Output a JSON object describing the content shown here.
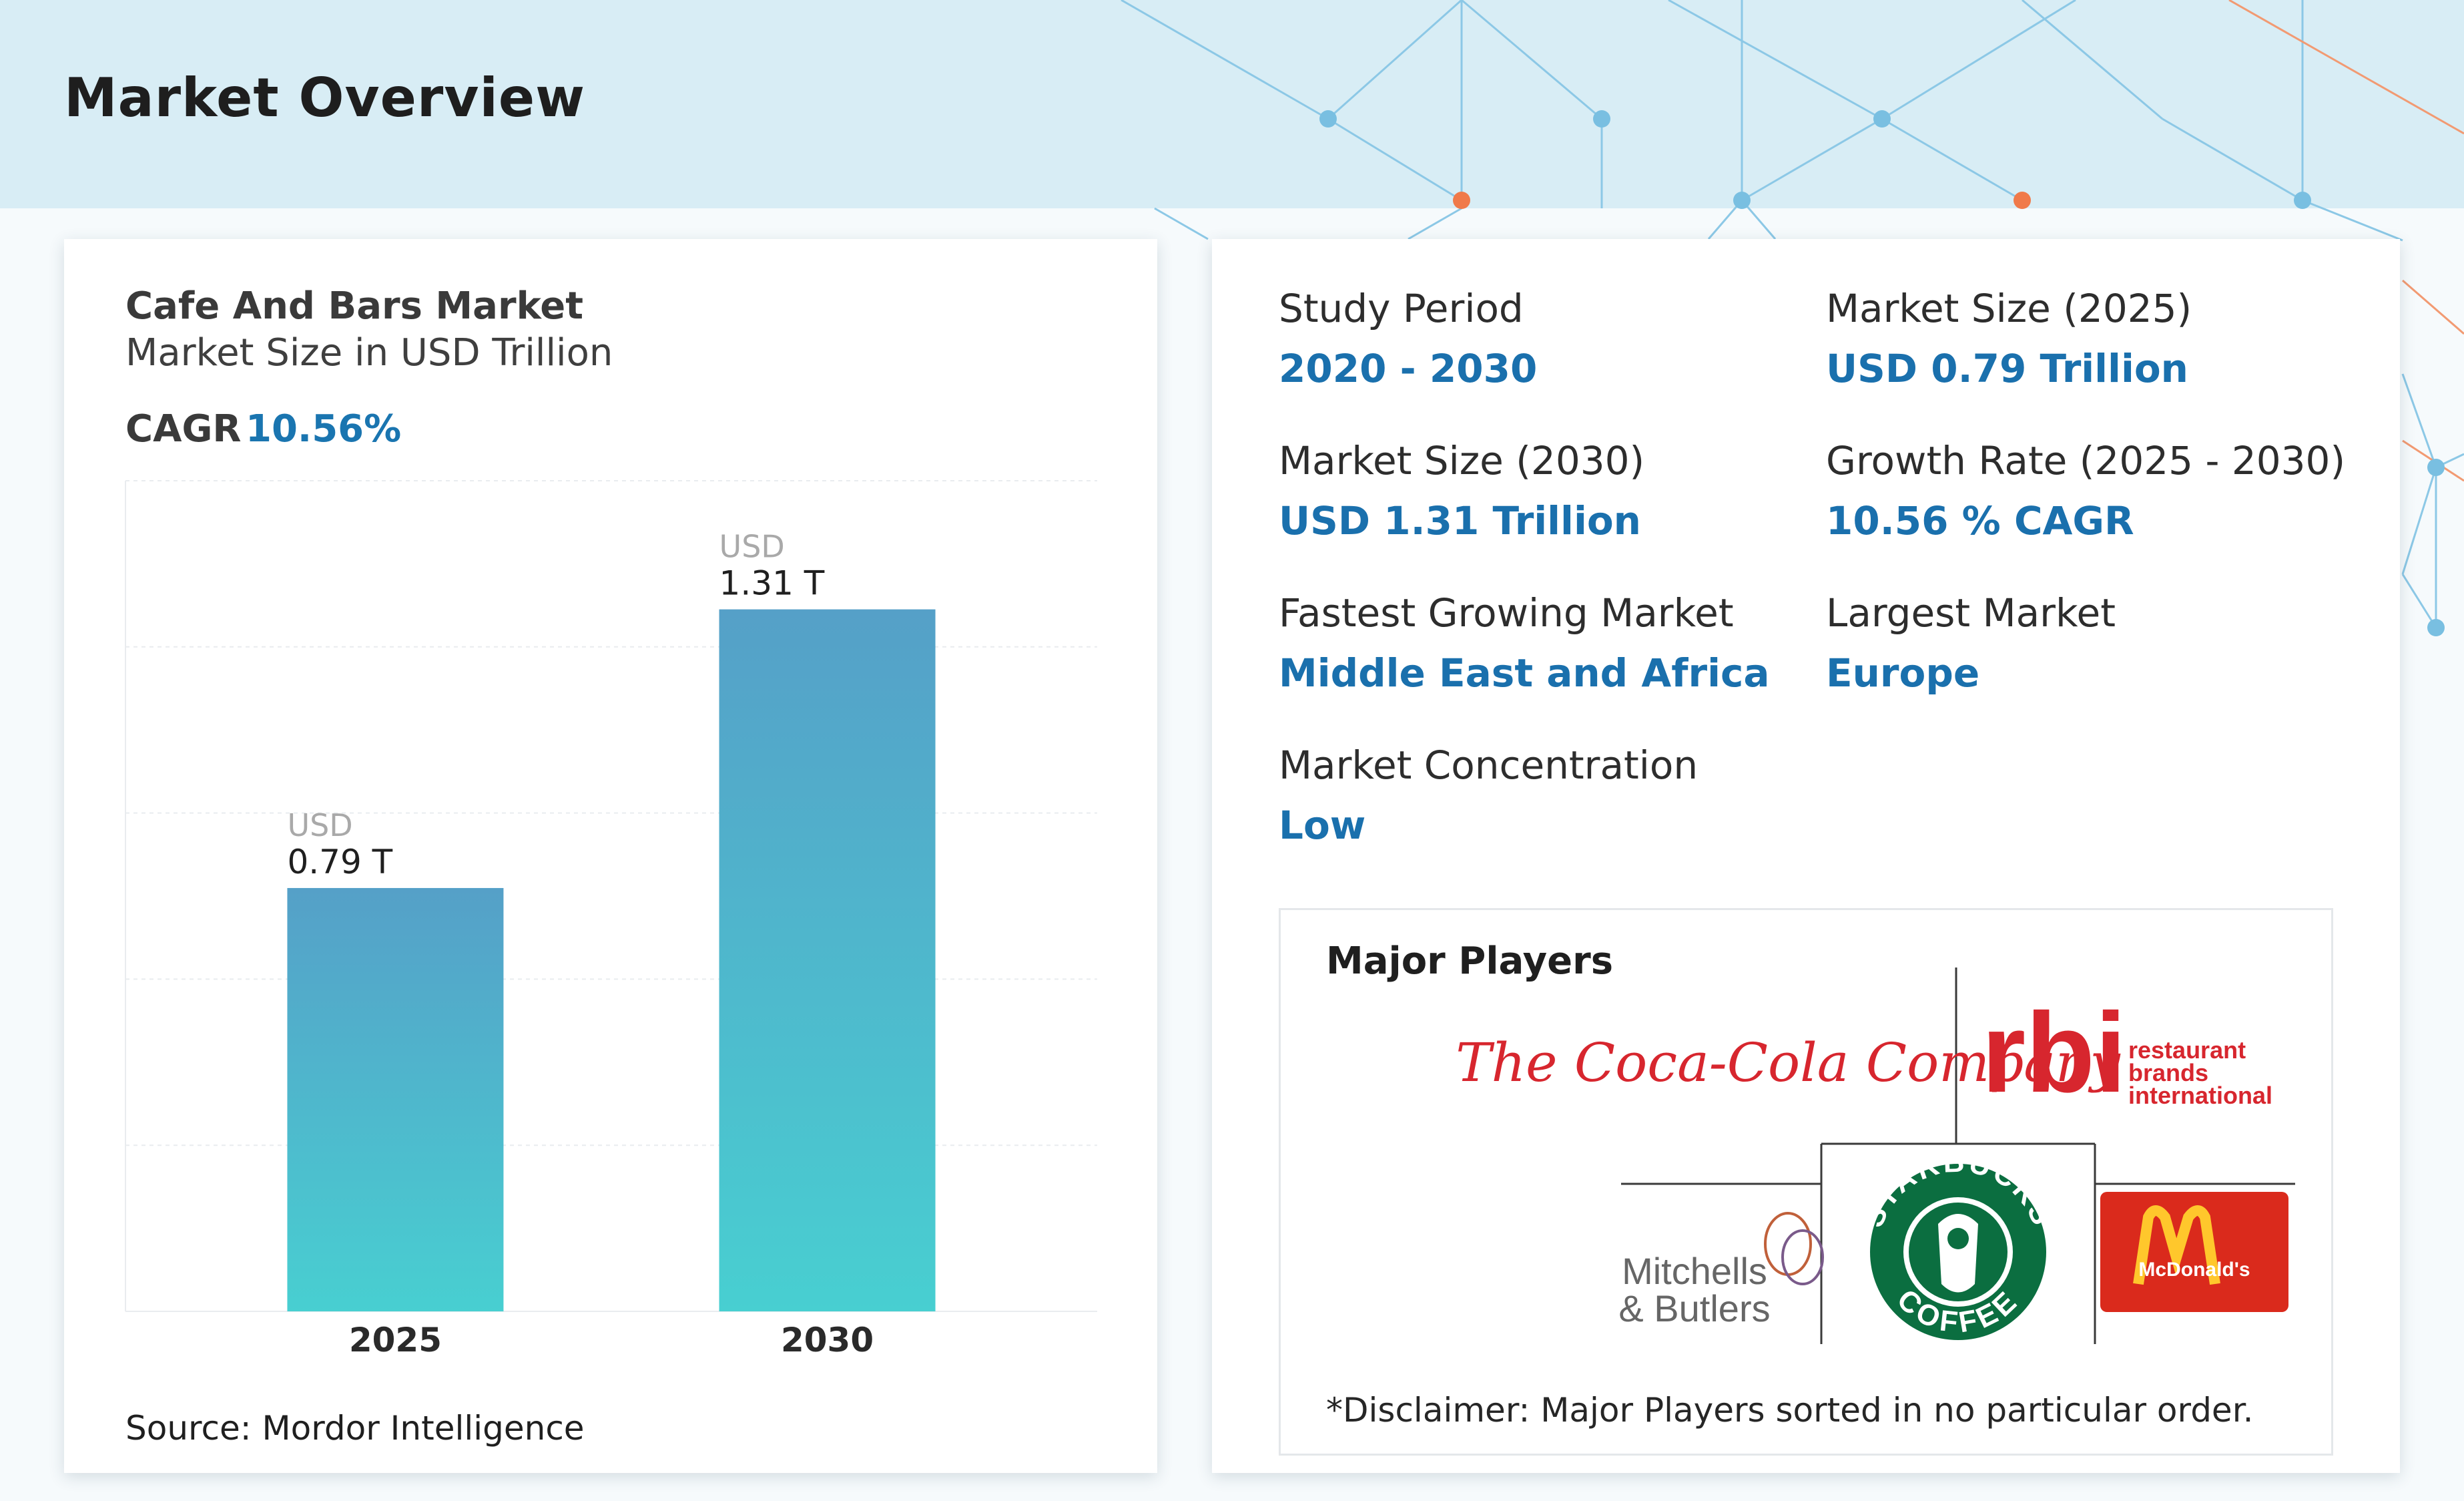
{
  "page": {
    "title": "Market Overview"
  },
  "colors": {
    "header_band": "#d8edf5",
    "accent_blue": "#1a70ad",
    "bar_top": "#55a0c8",
    "bar_bottom": "#48cfd1",
    "network_blue": "#78bde0",
    "network_orange": "#f07a4a"
  },
  "chart_data": {
    "type": "bar",
    "title": "Cafe And Bars Market",
    "subtitle": "Market Size in USD Trillion",
    "cagr_label": "CAGR",
    "cagr_value": "10.56%",
    "categories": [
      "2025",
      "2030"
    ],
    "values": [
      0.79,
      1.31
    ],
    "value_prefix": "USD",
    "value_labels": [
      "0.79 T",
      "1.31 T"
    ],
    "ylim": [
      0,
      1.55
    ],
    "grid": true,
    "source": "Source: Mordor Intelligence"
  },
  "stats": [
    {
      "label": "Study Period",
      "value": "2020 - 2030"
    },
    {
      "label": "Market Size (2025)",
      "value": "USD 0.79 Trillion"
    },
    {
      "label": "Market Size (2030)",
      "value": "USD 1.31 Trillion"
    },
    {
      "label": "Growth Rate (2025 - 2030)",
      "value": "10.56 % CAGR"
    },
    {
      "label": "Fastest Growing Market",
      "value": "Middle East and Africa"
    },
    {
      "label": "Largest Market",
      "value": "Europe"
    },
    {
      "label": "Market Concentration",
      "value": "Low"
    }
  ],
  "players": {
    "title": "Major Players",
    "logos": [
      {
        "name": "coca-cola-logo",
        "text": "The Coca-Cola Company"
      },
      {
        "name": "rbi-logo",
        "text": "rbi",
        "subtext": [
          "restaurant",
          "brands",
          "international"
        ]
      },
      {
        "name": "mitchells-butlers-logo",
        "text": [
          "Mitchells",
          "& Butlers"
        ]
      },
      {
        "name": "starbucks-logo",
        "text": [
          "STARBUCKS",
          "COFFEE"
        ]
      },
      {
        "name": "mcdonalds-logo",
        "text": "McDonald's"
      }
    ],
    "disclaimer": "*Disclaimer: Major Players sorted in no particular order."
  }
}
